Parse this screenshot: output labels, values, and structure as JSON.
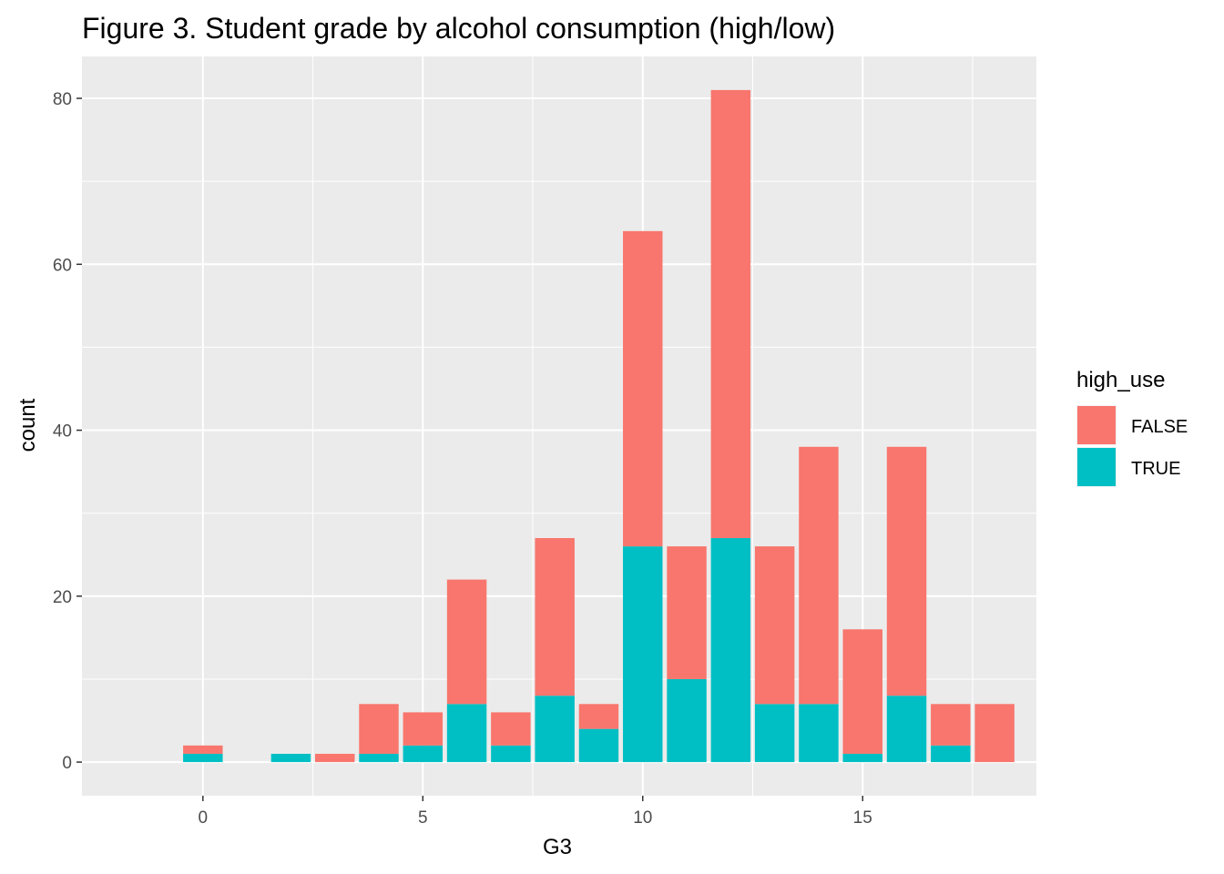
{
  "chart_data": {
    "type": "bar",
    "stacked": true,
    "title": "Figure 3. Student grade by alcohol consumption (high/low)",
    "xlabel": "G3",
    "ylabel": "count",
    "x": [
      0,
      2,
      3,
      4,
      5,
      6,
      7,
      8,
      9,
      10,
      11,
      12,
      13,
      14,
      15,
      16,
      17,
      18
    ],
    "series": [
      {
        "name": "FALSE",
        "color": "#F8766D",
        "values": [
          1,
          0,
          1,
          6,
          4,
          15,
          4,
          19,
          3,
          38,
          16,
          54,
          19,
          31,
          15,
          30,
          5,
          7
        ]
      },
      {
        "name": "TRUE",
        "color": "#00BFC4",
        "values": [
          1,
          1,
          0,
          1,
          2,
          7,
          2,
          8,
          4,
          26,
          10,
          27,
          7,
          7,
          1,
          8,
          2,
          0
        ]
      }
    ],
    "xlim": [
      -2.75,
      18.95
    ],
    "ylim": [
      -4.05,
      85.05
    ],
    "xticks": [
      0,
      5,
      10,
      15
    ],
    "yticks": [
      0,
      20,
      40,
      60,
      80
    ],
    "grid": true,
    "panel_background": "#EBEBEB",
    "legend_title": "high_use",
    "legend_position": "right"
  }
}
